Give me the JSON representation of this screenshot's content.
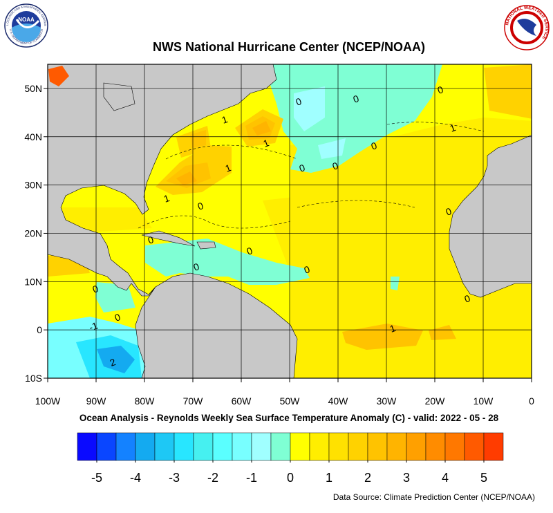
{
  "header": {
    "title": "NWS National Hurricane Center (NCEP/NOAA)",
    "noaa_logo": "NOAA",
    "noaa_ring": "NATIONAL OCEANIC AND ATMOSPHERIC ADMINISTRATION",
    "noaa_ring_bottom": "U.S. DEPARTMENT OF COMMERCE",
    "nws_ring": "NATIONAL WEATHER SERVICE"
  },
  "map": {
    "xlim": [
      -100,
      0
    ],
    "ylim": [
      -10,
      55
    ],
    "xticks": [
      {
        "value": -100,
        "label": "100W"
      },
      {
        "value": -90,
        "label": "90W"
      },
      {
        "value": -80,
        "label": "80W"
      },
      {
        "value": -70,
        "label": "70W"
      },
      {
        "value": -60,
        "label": "60W"
      },
      {
        "value": -50,
        "label": "50W"
      },
      {
        "value": -40,
        "label": "40W"
      },
      {
        "value": -30,
        "label": "30W"
      },
      {
        "value": -20,
        "label": "20W"
      },
      {
        "value": -10,
        "label": "10W"
      },
      0
    ],
    "yticks": [
      {
        "value": 50,
        "label": "50N"
      },
      {
        "value": 40,
        "label": "40N"
      },
      {
        "value": 30,
        "label": "30N"
      },
      {
        "value": 20,
        "label": "20N"
      },
      {
        "value": 10,
        "label": "10N"
      },
      0,
      {
        "value": -10,
        "label": "10S"
      }
    ],
    "contour_labels": [
      "1",
      "1",
      "1",
      "1",
      "1",
      "1",
      "0",
      "0",
      "0",
      "0",
      "0",
      "0",
      "0",
      "0",
      "0",
      "0",
      "0",
      "0",
      "0",
      "0",
      "0",
      "-1",
      "2"
    ]
  },
  "caption": "Ocean Analysis - Reynolds Weekly Sea Surface Temperature Anomaly (C) - valid: 2022 - 05 - 28",
  "colorbar": {
    "range": [
      -5.5,
      5.5
    ],
    "ticks": [
      -5,
      -4,
      -3,
      -2,
      -1,
      0,
      1,
      2,
      3,
      4,
      5
    ],
    "colors": [
      "#0a0aff",
      "#0a46ff",
      "#1482ff",
      "#14aaf0",
      "#1ec8f5",
      "#28e6ff",
      "#46f0f0",
      "#5affff",
      "#78ffff",
      "#a0ffff",
      "#7fffd4",
      "#ffff00",
      "#ffee00",
      "#ffe100",
      "#ffd200",
      "#ffc300",
      "#ffb400",
      "#ffa000",
      "#ff8c00",
      "#ff7800",
      "#ff5a00",
      "#ff3c00"
    ]
  },
  "source": "Data Source: Climate Prediction Center (NCEP/NOAA)"
}
